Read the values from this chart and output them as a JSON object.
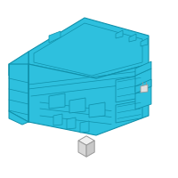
{
  "bg_color": "#ffffff",
  "main_color": "#2ec0de",
  "outline_color": "#1090aa",
  "fig_width": 2.0,
  "fig_height": 2.0,
  "dpi": 100,
  "small_box_face": "#e8e8e8",
  "small_box_edge": "#999999",
  "small_icon_face": "#dddddd",
  "small_icon_edge": "#aaaaaa"
}
